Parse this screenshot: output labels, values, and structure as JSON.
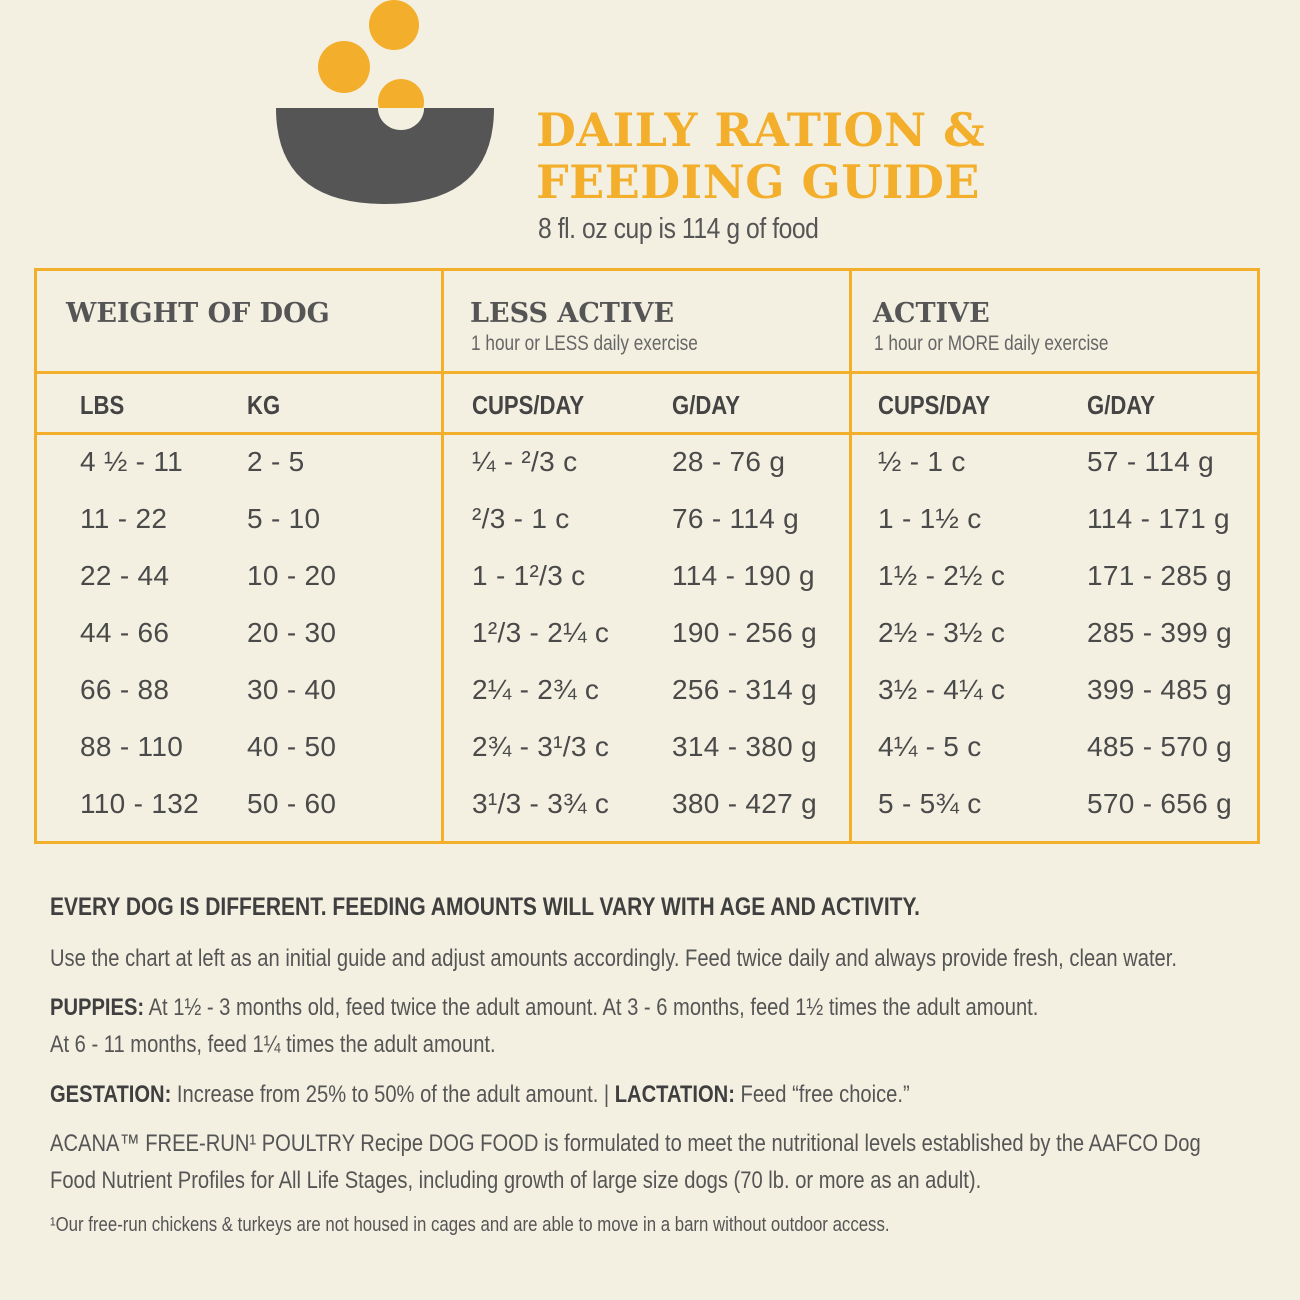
{
  "title_line1": "DAILY RATION &",
  "title_line2": "FEEDING GUIDE",
  "subtitle": "8 fl. oz cup is 114 g of food",
  "colors": {
    "accent": "#f3ae2c",
    "bowl": "#555555",
    "background": "#f3f0e1"
  },
  "logo_icon": "bowl-with-kibble-icon",
  "table": {
    "groups": [
      {
        "title": "WEIGHT OF DOG",
        "sub": ""
      },
      {
        "title": "LESS ACTIVE",
        "sub": "1 hour or LESS daily exercise"
      },
      {
        "title": "ACTIVE",
        "sub": "1 hour or MORE daily exercise"
      }
    ],
    "columns": [
      "LBS",
      "KG",
      "CUPS/DAY",
      "G/DAY",
      "CUPS/DAY",
      "G/DAY"
    ],
    "rows": [
      [
        "4 ½ - 11",
        "2 - 5",
        "¼ - ²/3 c",
        "28 - 76 g",
        "½ - 1 c",
        "57 - 114 g"
      ],
      [
        "11 - 22",
        "5 - 10",
        "²/3 - 1 c",
        "76 - 114 g",
        "1 - 1½ c",
        "114 - 171 g"
      ],
      [
        "22 - 44",
        "10 - 20",
        "1 - 1²/3 c",
        "114 - 190 g",
        "1½ - 2½ c",
        "171 - 285 g"
      ],
      [
        "44 - 66",
        "20 - 30",
        "1²/3 - 2¼ c",
        "190 - 256 g",
        "2½ - 3½ c",
        "285 - 399 g"
      ],
      [
        "66 - 88",
        "30 - 40",
        "2¼ - 2¾ c",
        "256 - 314 g",
        "3½ - 4¼ c",
        "399 - 485 g"
      ],
      [
        "88 - 110",
        "40 - 50",
        "2¾ - 3¹/3 c",
        "314 - 380 g",
        "4¼ - 5 c",
        "485 - 570 g"
      ],
      [
        "110 - 132",
        "50 - 60",
        "3¹/3 - 3¾ c",
        "380 - 427 g",
        "5 - 5¾ c",
        "570 - 656 g"
      ]
    ]
  },
  "notes": {
    "headline": "EVERY DOG IS DIFFERENT. FEEDING AMOUNTS WILL VARY WITH AGE AND ACTIVITY.",
    "usage": "Use the chart at left as an initial guide and adjust amounts accordingly. Feed twice daily and always provide fresh, clean water.",
    "puppies_label": "PUPPIES:",
    "puppies_text1": " At 1½ - 3 months old, feed twice the adult amount. At 3 - 6 months, feed 1½ times the adult amount.",
    "puppies_text2": "At 6 - 11 months, feed 1¼ times the adult amount.",
    "gestation_label": "GESTATION:",
    "gestation_text": " Increase from 25% to 50% of the adult amount. | ",
    "lactation_label": "LACTATION:",
    "lactation_text": " Feed “free choice.”",
    "aafco_line1": "ACANA™ FREE-RUN¹ POULTRY Recipe DOG FOOD is formulated to meet the nutritional levels established by the AAFCO Dog",
    "aafco_line2": "Food Nutrient Profiles for All Life Stages, including growth of large size dogs (70 lb. or more as an adult).",
    "footnote": "¹Our free-run chickens & turkeys are not housed in cages and are able to move in a barn without outdoor access."
  }
}
